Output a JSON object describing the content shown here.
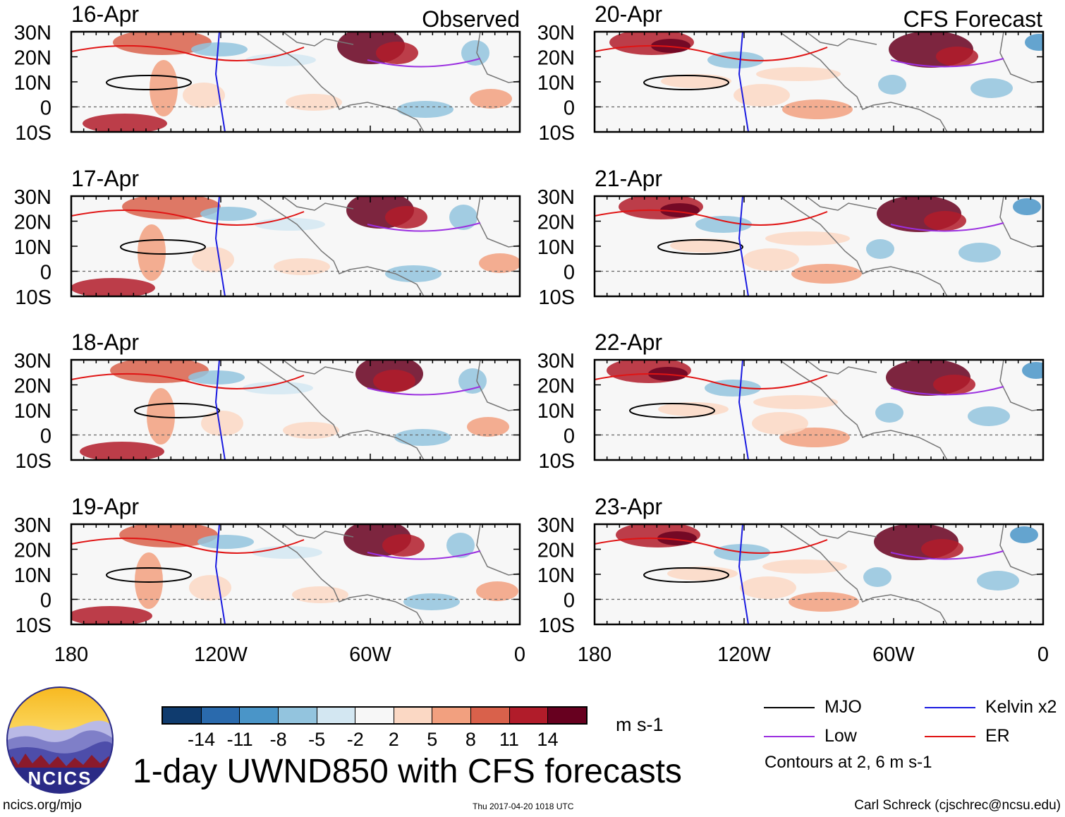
{
  "header": {
    "left_tag": "Observed",
    "right_tag": "CFS Forecast"
  },
  "panels": [
    {
      "date": "16-Apr",
      "group": "observed"
    },
    {
      "date": "17-Apr",
      "group": "observed"
    },
    {
      "date": "18-Apr",
      "group": "observed"
    },
    {
      "date": "19-Apr",
      "group": "observed"
    },
    {
      "date": "20-Apr",
      "group": "forecast"
    },
    {
      "date": "21-Apr",
      "group": "forecast"
    },
    {
      "date": "22-Apr",
      "group": "forecast"
    },
    {
      "date": "23-Apr",
      "group": "forecast"
    }
  ],
  "axes": {
    "lat_labels": [
      "30N",
      "20N",
      "10N",
      "0",
      "10S"
    ],
    "lon_labels": [
      "180",
      "120W",
      "60W",
      "0"
    ]
  },
  "colorbar": {
    "labels": [
      "-14",
      "-11",
      "-8",
      "-5",
      "-2",
      "2",
      "5",
      "8",
      "11",
      "14"
    ],
    "colors": [
      "#0f3b6e",
      "#2a6aad",
      "#4a95c8",
      "#93c4de",
      "#d3e7f2",
      "#f7f7f7",
      "#fbd8c4",
      "#f2a07f",
      "#d9614b",
      "#b11c2a",
      "#67001f"
    ],
    "units": "m s-1"
  },
  "title": "1-day UWND850 with CFS forecasts",
  "legend": {
    "items": [
      {
        "label": "MJO",
        "color": "#000000"
      },
      {
        "label": "Kelvin x2",
        "color": "#1a1ae0"
      },
      {
        "label": "Low",
        "color": "#9b30e0"
      },
      {
        "label": "ER",
        "color": "#e01414"
      }
    ],
    "note": "Contours at 2, 6 m s-1"
  },
  "logo": {
    "text": "NCICS"
  },
  "footer": {
    "url": "ncics.org/mjo",
    "timestamp": "Thu 2017-04-20 1018 UTC",
    "credit": "Carl Schreck (cjschrec@ncsu.edu)"
  }
}
